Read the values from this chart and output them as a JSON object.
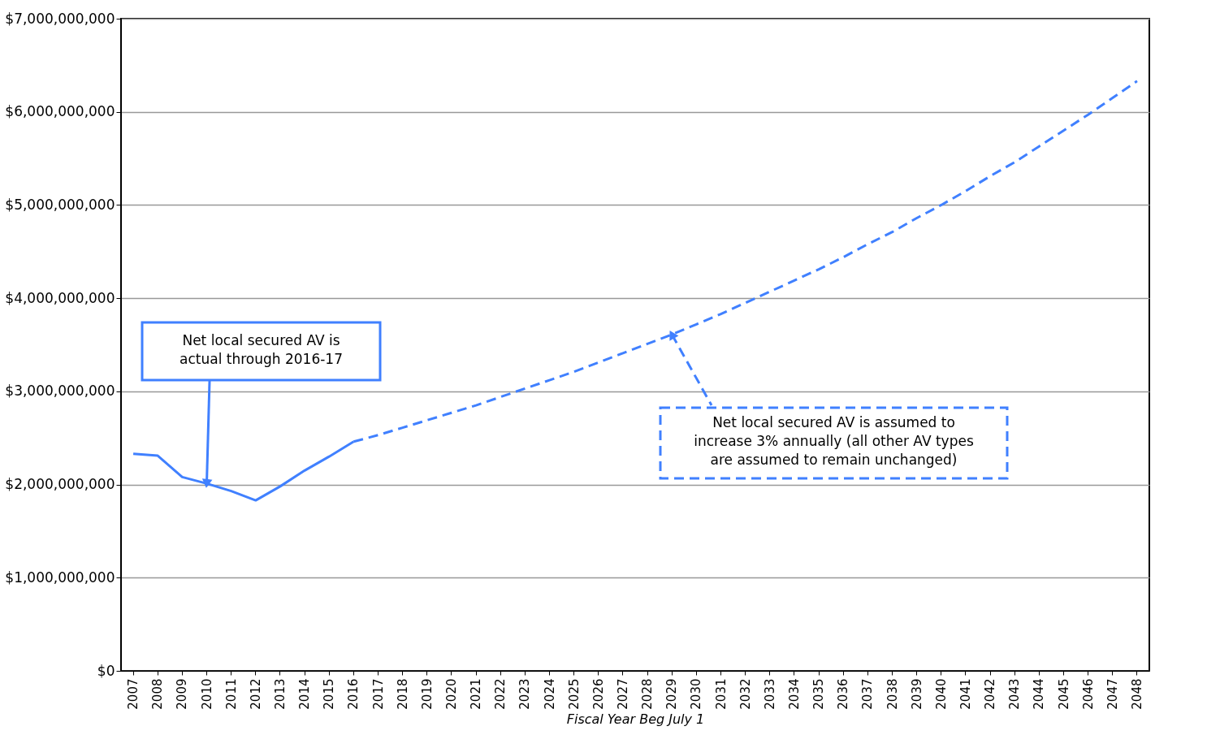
{
  "chart_data": {
    "type": "line",
    "xlabel": "Fiscal Year Beg July 1",
    "categories": [
      "2007",
      "2008",
      "2009",
      "2010",
      "2011",
      "2012",
      "2013",
      "2014",
      "2015",
      "2016",
      "2017",
      "2018",
      "2019",
      "2020",
      "2021",
      "2022",
      "2023",
      "2024",
      "2025",
      "2026",
      "2027",
      "2028",
      "2029",
      "2030",
      "2031",
      "2032",
      "2033",
      "2034",
      "2035",
      "2036",
      "2037",
      "2038",
      "2039",
      "2040",
      "2041",
      "2042",
      "2043",
      "2044",
      "2045",
      "2046",
      "2047",
      "2048"
    ],
    "series": [
      {
        "color": "#4080ff",
        "line_style": "solid",
        "values": [
          2330000000,
          2310000000,
          2080000000,
          2010000000,
          1930000000,
          1830000000,
          1980000000,
          2150000000,
          2300000000,
          2460000000,
          null,
          null,
          null,
          null,
          null,
          null,
          null,
          null,
          null,
          null,
          null,
          null,
          null,
          null,
          null,
          null,
          null,
          null,
          null,
          null,
          null,
          null,
          null,
          null,
          null,
          null,
          null,
          null,
          null,
          null,
          null,
          null
        ]
      },
      {
        "color": "#4080ff",
        "line_style": "dashed",
        "values": [
          null,
          null,
          null,
          null,
          null,
          null,
          null,
          null,
          null,
          2460000000,
          2530000000,
          2610000000,
          2690000000,
          2770000000,
          2850000000,
          2940000000,
          3030000000,
          3120000000,
          3210000000,
          3310000000,
          3410000000,
          3510000000,
          3610000000,
          3720000000,
          3830000000,
          3950000000,
          4070000000,
          4190000000,
          4310000000,
          4440000000,
          4580000000,
          4710000000,
          4860000000,
          5000000000,
          5150000000,
          5310000000,
          5460000000,
          5630000000,
          5800000000,
          5970000000,
          6150000000,
          6330000000
        ]
      }
    ],
    "ylim": [
      0,
      7000000000
    ],
    "yticks": [
      {
        "value": 0,
        "label": "$0"
      },
      {
        "value": 1000000000,
        "label": "$1,000,000,000"
      },
      {
        "value": 2000000000,
        "label": "$2,000,000,000"
      },
      {
        "value": 3000000000,
        "label": "$3,000,000,000"
      },
      {
        "value": 4000000000,
        "label": "$4,000,000,000"
      },
      {
        "value": 5000000000,
        "label": "$5,000,000,000"
      },
      {
        "value": 6000000000,
        "label": "$6,000,000,000"
      },
      {
        "value": 7000000000,
        "label": "$7,000,000,000"
      }
    ],
    "grid": "y",
    "annotations": [
      {
        "text": "Net local secured AV is\nactual through 2016-17",
        "x": "2010",
        "y": 2010000000
      },
      {
        "text": "Net local secured AV is assumed to\nincrease 3% annually (all other AV types\nare assumed to remain unchanged)",
        "x": "2029",
        "y": 3610000000
      }
    ]
  }
}
